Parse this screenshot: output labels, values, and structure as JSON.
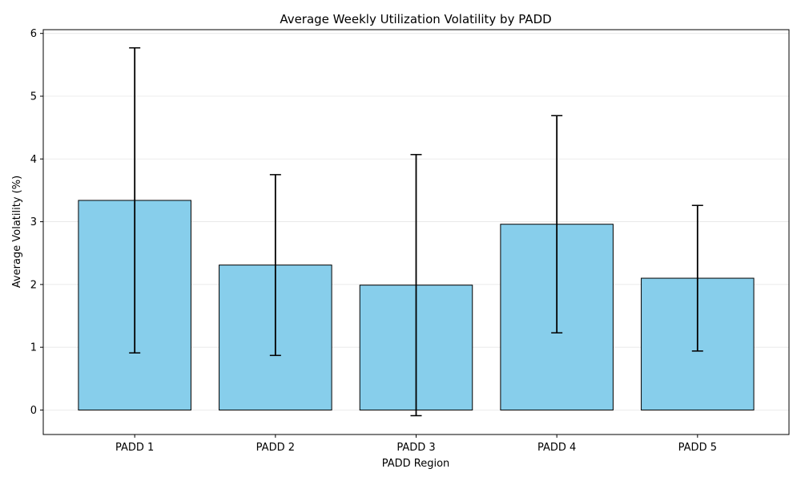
{
  "chart_data": {
    "type": "bar",
    "title": "Average Weekly Utilization Volatility by PADD",
    "xlabel": "PADD Region",
    "ylabel": "Average Volatility (%)",
    "categories": [
      "PADD 1",
      "PADD 2",
      "PADD 3",
      "PADD 4",
      "PADD 5"
    ],
    "values": [
      3.34,
      2.31,
      1.99,
      2.96,
      2.1
    ],
    "error": [
      2.43,
      1.44,
      2.08,
      1.73,
      1.16
    ],
    "ylim": [
      -0.39,
      6.06
    ],
    "yticks": [
      "0",
      "1",
      "2",
      "3",
      "4",
      "5",
      "6"
    ],
    "grid": "horizontal",
    "bar_color": "#87ceeb",
    "edge_color": "#000000"
  }
}
